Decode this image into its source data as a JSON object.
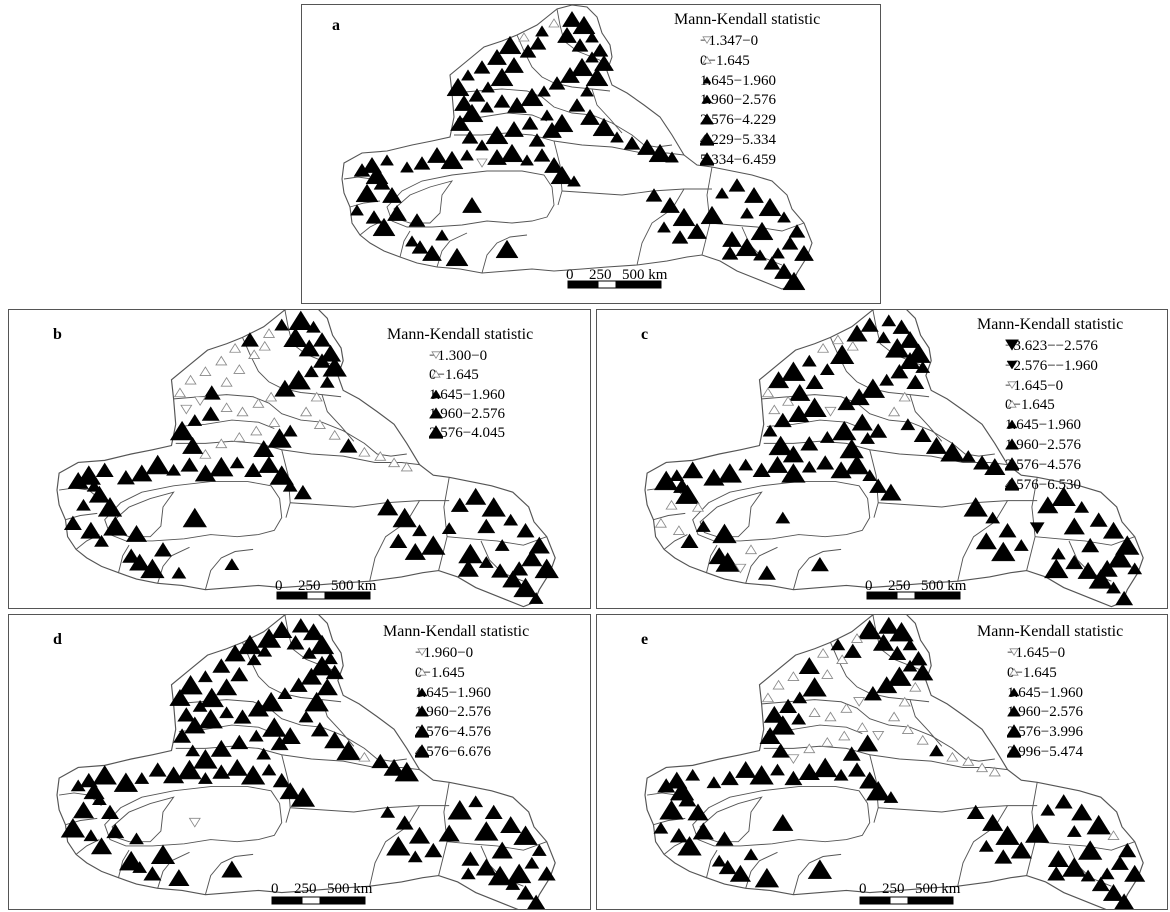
{
  "panels": [
    {
      "id": "a",
      "label": "a",
      "legend_title": "Mann-Kendall statistic",
      "legend": [
        {
          "range": "−1.347−0",
          "symbol": "hollow-down-triangle",
          "size": 1
        },
        {
          "range": "0−1.645",
          "symbol": "hollow-up-triangle",
          "size": 1
        },
        {
          "range": "1.645−1.960",
          "symbol": "filled-up-triangle",
          "size": 1
        },
        {
          "range": "1.960−2.576",
          "symbol": "filled-up-triangle",
          "size": 2
        },
        {
          "range": "2.576−4.229",
          "symbol": "filled-up-triangle",
          "size": 3
        },
        {
          "range": "4.229−5.334",
          "symbol": "filled-up-triangle",
          "size": 4
        },
        {
          "range": "5.334−6.459",
          "symbol": "filled-up-triangle",
          "size": 5
        }
      ],
      "scale_labels": [
        "0",
        "250",
        "500 km"
      ]
    },
    {
      "id": "b",
      "label": "b",
      "legend_title": "Mann-Kendall statistic",
      "legend": [
        {
          "range": "−1.300−0",
          "symbol": "hollow-down-triangle",
          "size": 1
        },
        {
          "range": "0−1.645",
          "symbol": "hollow-up-triangle",
          "size": 1
        },
        {
          "range": "1.645−1.960",
          "symbol": "filled-up-triangle",
          "size": 2
        },
        {
          "range": "1.960−2.576",
          "symbol": "filled-up-triangle",
          "size": 3
        },
        {
          "range": "2.576−4.045",
          "symbol": "filled-up-triangle",
          "size": 5
        }
      ],
      "scale_labels": [
        "0",
        "250",
        "500 km"
      ]
    },
    {
      "id": "c",
      "label": "c",
      "legend_title": "Mann-Kendall statistic",
      "legend": [
        {
          "range": "−3.623−−2.576",
          "symbol": "filled-down-triangle",
          "size": 3
        },
        {
          "range": "−2.576−−1.960",
          "symbol": "filled-down-triangle",
          "size": 2
        },
        {
          "range": "−1.645−0",
          "symbol": "hollow-down-triangle",
          "size": 1
        },
        {
          "range": "0−1.645",
          "symbol": "hollow-up-triangle",
          "size": 1
        },
        {
          "range": "1.645−1.960",
          "symbol": "filled-up-triangle",
          "size": 2
        },
        {
          "range": "1.960−2.576",
          "symbol": "filled-up-triangle",
          "size": 3
        },
        {
          "range": "2.576−4.576",
          "symbol": "filled-up-triangle",
          "size": 4
        },
        {
          "range": "4.576−6.530",
          "symbol": "filled-up-triangle",
          "size": 5
        }
      ],
      "scale_labels": [
        "0",
        "250",
        "500 km"
      ]
    },
    {
      "id": "d",
      "label": "d",
      "legend_title": "Mann-Kendall statistic",
      "legend": [
        {
          "range": "−1.960−0",
          "symbol": "hollow-down-triangle",
          "size": 1
        },
        {
          "range": "0−1.645",
          "symbol": "hollow-up-triangle",
          "size": 1
        },
        {
          "range": "1.645−1.960",
          "symbol": "filled-up-triangle",
          "size": 2
        },
        {
          "range": "1.960−2.576",
          "symbol": "filled-up-triangle",
          "size": 3
        },
        {
          "range": "2.576−4.576",
          "symbol": "filled-up-triangle",
          "size": 4
        },
        {
          "range": "4.576−6.676",
          "symbol": "filled-up-triangle",
          "size": 5
        }
      ],
      "scale_labels": [
        "0",
        "250",
        "500 km"
      ]
    },
    {
      "id": "e",
      "label": "e",
      "legend_title": "Mann-Kendall statistic",
      "legend": [
        {
          "range": "−1.645−0",
          "symbol": "hollow-down-triangle",
          "size": 1
        },
        {
          "range": "0−1.645",
          "symbol": "hollow-up-triangle",
          "size": 1
        },
        {
          "range": "1.645−1.960",
          "symbol": "filled-up-triangle",
          "size": 2
        },
        {
          "range": "1.960−2.576",
          "symbol": "filled-up-triangle",
          "size": 3
        },
        {
          "range": "2.576−3.996",
          "symbol": "filled-up-triangle",
          "size": 4
        },
        {
          "range": "3.996−5.474",
          "symbol": "filled-up-triangle",
          "size": 5
        }
      ],
      "scale_labels": [
        "0",
        "250",
        "500 km"
      ]
    }
  ],
  "colors": {
    "border": "#555555",
    "boundary": "#555555",
    "symbol": "#000000"
  }
}
